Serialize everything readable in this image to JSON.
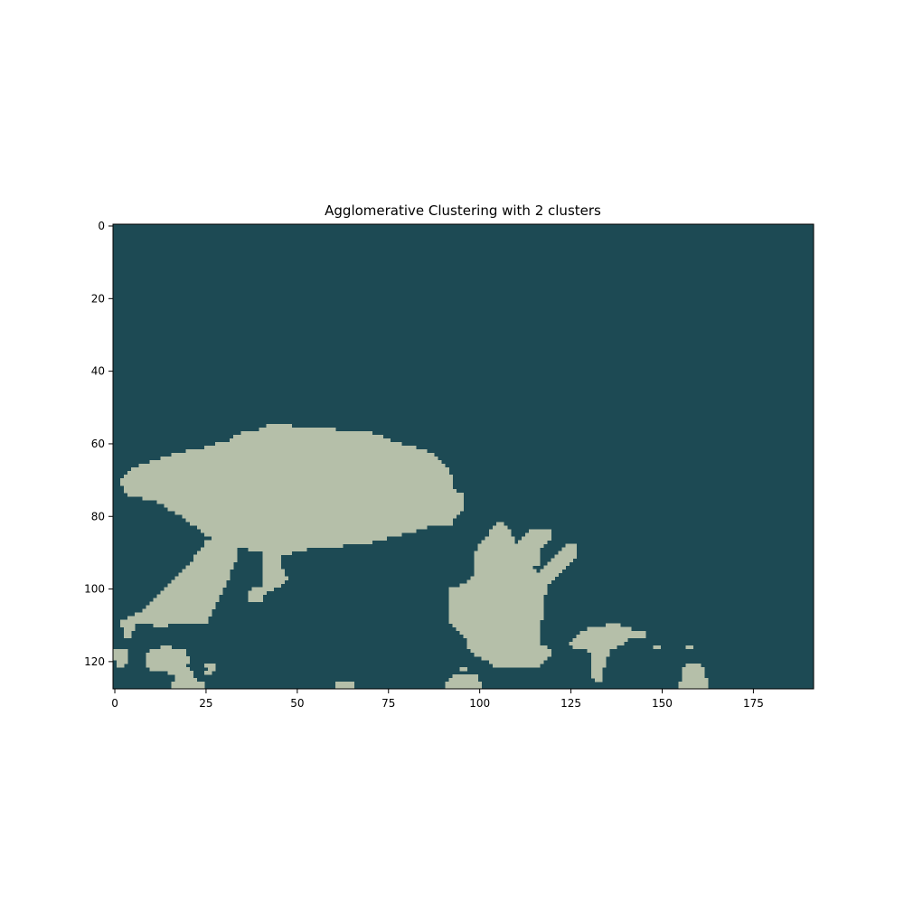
{
  "chart_data": {
    "type": "heatmap",
    "title": "Agglomerative Clustering with 2 clusters",
    "xlabel": "",
    "ylabel": "",
    "image_width": 192,
    "image_height": 128,
    "xlim": [
      0,
      192
    ],
    "ylim": [
      128,
      0
    ],
    "x_ticks": [
      0,
      25,
      50,
      75,
      100,
      125,
      150,
      175
    ],
    "x_tick_labels": [
      "0",
      "25",
      "50",
      "75",
      "100",
      "125",
      "150",
      "175"
    ],
    "y_ticks": [
      0,
      20,
      40,
      60,
      80,
      100,
      120
    ],
    "y_tick_labels": [
      "0",
      "20",
      "40",
      "60",
      "80",
      "100",
      "120"
    ],
    "grid": false,
    "clusters": [
      {
        "label": 0,
        "color": "#1d4a54"
      },
      {
        "label": 1,
        "color": "#b5bfa9"
      }
    ],
    "cluster_1_regions": [
      {
        "region": "large-blob",
        "rows": [
          [
            55,
            42,
            48
          ],
          [
            56,
            40,
            60
          ],
          [
            57,
            35,
            70
          ],
          [
            58,
            33,
            73
          ],
          [
            59,
            32,
            75
          ],
          [
            60,
            28,
            78
          ],
          [
            61,
            25,
            82
          ],
          [
            62,
            20,
            85
          ],
          [
            63,
            16,
            87
          ],
          [
            64,
            13,
            88
          ],
          [
            65,
            10,
            89
          ],
          [
            66,
            7,
            90
          ],
          [
            67,
            5,
            91
          ],
          [
            68,
            4,
            91
          ],
          [
            69,
            3,
            92
          ],
          [
            70,
            2,
            92
          ],
          [
            71,
            2,
            92
          ],
          [
            72,
            3,
            92
          ],
          [
            73,
            3,
            93
          ],
          [
            74,
            4,
            95
          ],
          [
            75,
            8,
            95
          ],
          [
            76,
            12,
            95
          ],
          [
            77,
            14,
            95
          ],
          [
            78,
            15,
            95
          ],
          [
            79,
            17,
            94
          ],
          [
            80,
            19,
            93
          ],
          [
            81,
            20,
            92
          ],
          [
            82,
            21,
            92
          ],
          [
            83,
            23,
            85
          ],
          [
            84,
            24,
            82
          ],
          [
            85,
            25,
            78
          ],
          [
            86,
            27,
            74
          ],
          [
            87,
            29,
            70
          ],
          [
            88,
            33,
            62
          ],
          [
            89,
            37,
            52
          ],
          [
            90,
            45,
            48
          ]
        ]
      },
      {
        "region": "left-arm",
        "rows": [
          [
            87,
            25,
            34
          ],
          [
            88,
            25,
            33
          ],
          [
            89,
            24,
            33
          ],
          [
            90,
            23,
            33
          ],
          [
            91,
            22,
            33
          ],
          [
            92,
            22,
            33
          ],
          [
            93,
            21,
            32
          ],
          [
            94,
            20,
            32
          ],
          [
            95,
            19,
            31
          ],
          [
            96,
            18,
            31
          ],
          [
            97,
            17,
            31
          ],
          [
            98,
            16,
            30
          ],
          [
            99,
            15,
            30
          ],
          [
            100,
            14,
            29
          ],
          [
            101,
            13,
            29
          ],
          [
            102,
            12,
            28
          ],
          [
            103,
            11,
            28
          ],
          [
            104,
            10,
            27
          ],
          [
            105,
            9,
            27
          ],
          [
            106,
            8,
            26
          ],
          [
            107,
            6,
            26
          ],
          [
            108,
            4,
            25
          ],
          [
            109,
            2,
            25
          ],
          [
            110,
            2,
            5
          ],
          [
            110,
            11,
            14
          ],
          [
            111,
            3,
            5
          ],
          [
            112,
            3,
            4
          ],
          [
            113,
            3,
            4
          ]
        ]
      },
      {
        "region": "stem",
        "rows": [
          [
            87,
            41,
            45
          ],
          [
            88,
            41,
            45
          ],
          [
            89,
            41,
            45
          ],
          [
            90,
            41,
            45
          ],
          [
            91,
            41,
            45
          ],
          [
            92,
            41,
            45
          ],
          [
            93,
            41,
            45
          ],
          [
            94,
            41,
            45
          ],
          [
            95,
            41,
            46
          ],
          [
            96,
            41,
            46
          ],
          [
            97,
            41,
            47
          ],
          [
            98,
            41,
            46
          ],
          [
            99,
            41,
            45
          ],
          [
            100,
            38,
            43
          ],
          [
            101,
            37,
            41
          ],
          [
            102,
            37,
            40
          ],
          [
            103,
            37,
            40
          ]
        ]
      },
      {
        "region": "hand",
        "rows": [
          [
            82,
            105,
            106
          ],
          [
            83,
            104,
            107
          ],
          [
            84,
            103,
            108
          ],
          [
            85,
            103,
            108
          ],
          [
            86,
            102,
            109
          ],
          [
            87,
            101,
            109
          ],
          [
            88,
            100,
            110
          ],
          [
            89,
            100,
            110
          ],
          [
            90,
            99,
            111
          ],
          [
            91,
            99,
            111
          ],
          [
            92,
            99,
            112
          ],
          [
            93,
            99,
            113
          ],
          [
            94,
            99,
            114
          ],
          [
            95,
            99,
            115
          ],
          [
            96,
            99,
            116
          ],
          [
            97,
            98,
            117
          ],
          [
            98,
            97,
            118
          ],
          [
            99,
            95,
            118
          ],
          [
            100,
            92,
            118
          ],
          [
            101,
            92,
            118
          ],
          [
            102,
            92,
            117
          ],
          [
            103,
            92,
            117
          ],
          [
            104,
            92,
            117
          ],
          [
            105,
            92,
            117
          ],
          [
            106,
            92,
            117
          ],
          [
            107,
            92,
            117
          ],
          [
            108,
            92,
            117
          ],
          [
            109,
            92,
            116
          ],
          [
            110,
            93,
            116
          ],
          [
            111,
            94,
            116
          ],
          [
            112,
            95,
            116
          ],
          [
            113,
            96,
            116
          ],
          [
            114,
            97,
            116
          ],
          [
            115,
            97,
            116
          ],
          [
            116,
            97,
            118
          ],
          [
            117,
            98,
            119
          ],
          [
            118,
            99,
            119
          ],
          [
            119,
            101,
            118
          ],
          [
            120,
            103,
            117
          ],
          [
            121,
            104,
            116
          ]
        ]
      },
      {
        "region": "right-finger-1",
        "rows": [
          [
            84,
            114,
            119
          ],
          [
            85,
            113,
            119
          ],
          [
            86,
            112,
            119
          ],
          [
            87,
            111,
            118
          ],
          [
            88,
            111,
            117
          ],
          [
            89,
            111,
            116
          ],
          [
            90,
            111,
            116
          ],
          [
            91,
            111,
            116
          ],
          [
            92,
            111,
            116
          ],
          [
            93,
            111,
            116
          ]
        ]
      },
      {
        "region": "right-finger-2",
        "rows": [
          [
            88,
            124,
            126
          ],
          [
            89,
            123,
            126
          ],
          [
            90,
            122,
            126
          ],
          [
            91,
            121,
            126
          ],
          [
            92,
            120,
            125
          ],
          [
            93,
            119,
            124
          ],
          [
            94,
            118,
            123
          ],
          [
            95,
            117,
            122
          ],
          [
            96,
            116,
            121
          ],
          [
            97,
            116,
            120
          ],
          [
            98,
            116,
            119
          ],
          [
            99,
            116,
            118
          ],
          [
            100,
            116,
            117
          ]
        ]
      },
      {
        "region": "small-island",
        "rows": [
          [
            110,
            135,
            138
          ],
          [
            111,
            130,
            141
          ],
          [
            112,
            128,
            145
          ],
          [
            113,
            127,
            145
          ],
          [
            114,
            126,
            140
          ],
          [
            115,
            125,
            139
          ],
          [
            116,
            126,
            137
          ],
          [
            117,
            130,
            135
          ],
          [
            118,
            131,
            135
          ],
          [
            119,
            131,
            134
          ],
          [
            120,
            131,
            134
          ],
          [
            121,
            131,
            134
          ],
          [
            122,
            131,
            133
          ],
          [
            123,
            131,
            133
          ],
          [
            124,
            131,
            133
          ],
          [
            125,
            132,
            133
          ]
        ]
      },
      {
        "region": "bottom-left",
        "rows": [
          [
            117,
            0,
            3
          ],
          [
            118,
            0,
            3
          ],
          [
            119,
            0,
            3
          ],
          [
            120,
            1,
            3
          ],
          [
            121,
            1,
            2
          ],
          [
            116,
            13,
            15
          ],
          [
            117,
            10,
            19
          ],
          [
            118,
            9,
            19
          ],
          [
            119,
            9,
            20
          ],
          [
            120,
            9,
            20
          ],
          [
            121,
            9,
            19
          ],
          [
            122,
            10,
            20
          ],
          [
            123,
            15,
            21
          ],
          [
            124,
            17,
            21
          ],
          [
            125,
            17,
            22
          ],
          [
            126,
            16,
            24
          ],
          [
            127,
            16,
            24
          ],
          [
            121,
            25,
            27
          ],
          [
            122,
            26,
            27
          ],
          [
            123,
            25,
            26
          ],
          [
            126,
            61,
            65
          ],
          [
            127,
            61,
            65
          ]
        ]
      },
      {
        "region": "bottom-middle",
        "rows": [
          [
            122,
            95,
            96
          ],
          [
            124,
            93,
            99
          ],
          [
            125,
            92,
            99
          ],
          [
            126,
            91,
            100
          ],
          [
            127,
            91,
            100
          ]
        ]
      },
      {
        "region": "bottom-right",
        "rows": [
          [
            116,
            148,
            149
          ],
          [
            116,
            157,
            158
          ],
          [
            121,
            157,
            160
          ],
          [
            122,
            156,
            161
          ],
          [
            123,
            156,
            161
          ],
          [
            124,
            156,
            161
          ],
          [
            125,
            156,
            162
          ],
          [
            126,
            155,
            162
          ],
          [
            127,
            155,
            162
          ]
        ]
      }
    ]
  }
}
